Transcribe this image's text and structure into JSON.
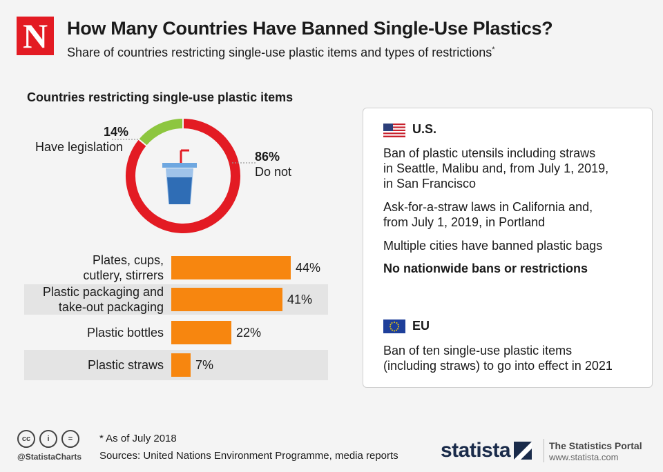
{
  "header": {
    "logo_letter": "N",
    "title": "How Many Countries Have Banned Single-Use Plastics?",
    "subtitle": "Share of countries restricting single-use plastic items and types of restrictions",
    "subtitle_mark": "*"
  },
  "chart_data": [
    {
      "type": "pie",
      "variant": "donut",
      "title": "Countries restricting single-use plastic items",
      "categories": [
        "Have legislation",
        "Do not"
      ],
      "values": [
        14,
        86
      ],
      "labels": [
        "14%",
        "86%"
      ],
      "colors": [
        "#8dc63f",
        "#e31b23"
      ]
    },
    {
      "type": "bar",
      "orientation": "horizontal",
      "categories": [
        "Plates, cups, cutlery, stirrers",
        "Plastic packaging and take-out packaging",
        "Plastic bottles",
        "Plastic straws"
      ],
      "label_lines": [
        [
          "Plates, cups,",
          "cutlery, stirrers"
        ],
        [
          "Plastic packaging and",
          "take-out packaging"
        ],
        [
          "Plastic bottles"
        ],
        [
          "Plastic straws"
        ]
      ],
      "values": [
        44,
        41,
        22,
        7
      ],
      "value_labels": [
        "44%",
        "41%",
        "22%",
        "7%"
      ],
      "unit": "%",
      "color": "#f7860f"
    }
  ],
  "panel": {
    "us": {
      "region": "U.S.",
      "items": [
        [
          "Ban of plastic utensils including straws",
          "in Seattle, Malibu and, from July 1, 2019,",
          "in San Francisco"
        ],
        [
          "Ask-for-a-straw laws in California and,",
          "from July 1, 2019, in Portland"
        ],
        [
          "Multiple cities have banned plastic bags"
        ]
      ],
      "bold_item": "No nationwide bans or restrictions"
    },
    "eu": {
      "region": "EU",
      "items": [
        [
          "Ban of ten single-use plastic items",
          "(including straws) to go into effect in 2021"
        ]
      ]
    }
  },
  "footer": {
    "cc_icons": [
      "cc",
      "i",
      "="
    ],
    "handle": "@StatistaCharts",
    "note": "* As of July 2018",
    "sources": "Sources: United Nations Environment Programme, media reports",
    "brand": "statista",
    "portal_title": "The Statistics Portal",
    "portal_url": "www.statista.com"
  },
  "colors": {
    "accent_red": "#e31b23",
    "green": "#8dc63f",
    "orange": "#f7860f",
    "cup_blue": "#2f6db5"
  }
}
